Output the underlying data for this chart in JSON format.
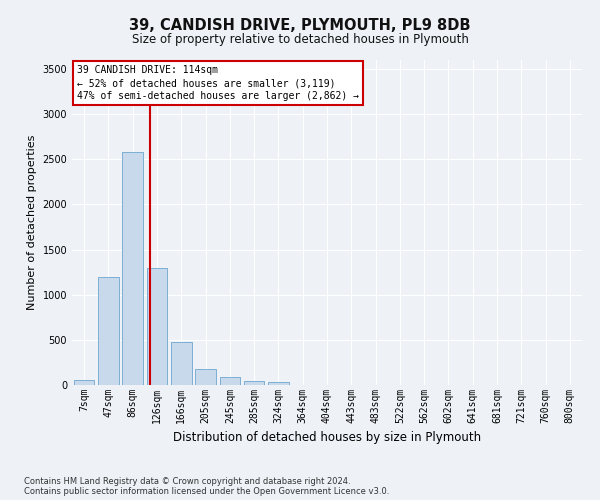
{
  "title": "39, CANDISH DRIVE, PLYMOUTH, PL9 8DB",
  "subtitle": "Size of property relative to detached houses in Plymouth",
  "xlabel": "Distribution of detached houses by size in Plymouth",
  "ylabel": "Number of detached properties",
  "bar_labels": [
    "7sqm",
    "47sqm",
    "86sqm",
    "126sqm",
    "166sqm",
    "205sqm",
    "245sqm",
    "285sqm",
    "324sqm",
    "364sqm",
    "404sqm",
    "443sqm",
    "483sqm",
    "522sqm",
    "562sqm",
    "602sqm",
    "641sqm",
    "681sqm",
    "721sqm",
    "760sqm",
    "800sqm"
  ],
  "bar_values": [
    50,
    1200,
    2580,
    1300,
    480,
    175,
    90,
    45,
    35,
    5,
    0,
    0,
    0,
    0,
    0,
    0,
    0,
    0,
    0,
    0,
    0
  ],
  "bar_color": "#c9d9ec",
  "bar_edge_color": "#7bafd4",
  "ylim": [
    0,
    3600
  ],
  "yticks": [
    0,
    500,
    1000,
    1500,
    2000,
    2500,
    3000,
    3500
  ],
  "property_sqm": 114,
  "annotation_text": "39 CANDISH DRIVE: 114sqm\n← 52% of detached houses are smaller (3,119)\n47% of semi-detached houses are larger (2,862) →",
  "footnote1": "Contains HM Land Registry data © Crown copyright and database right 2024.",
  "footnote2": "Contains public sector information licensed under the Open Government Licence v3.0.",
  "background_color": "#eef2f7",
  "grid_color": "#ffffff",
  "annotation_box_color": "#ffffff",
  "annotation_box_edge": "#cc0000",
  "vline_color": "#cc0000",
  "title_fontsize": 10.5,
  "subtitle_fontsize": 8.5,
  "ylabel_fontsize": 8,
  "xlabel_fontsize": 8.5,
  "tick_fontsize": 7,
  "annotation_fontsize": 7,
  "footnote_fontsize": 6
}
